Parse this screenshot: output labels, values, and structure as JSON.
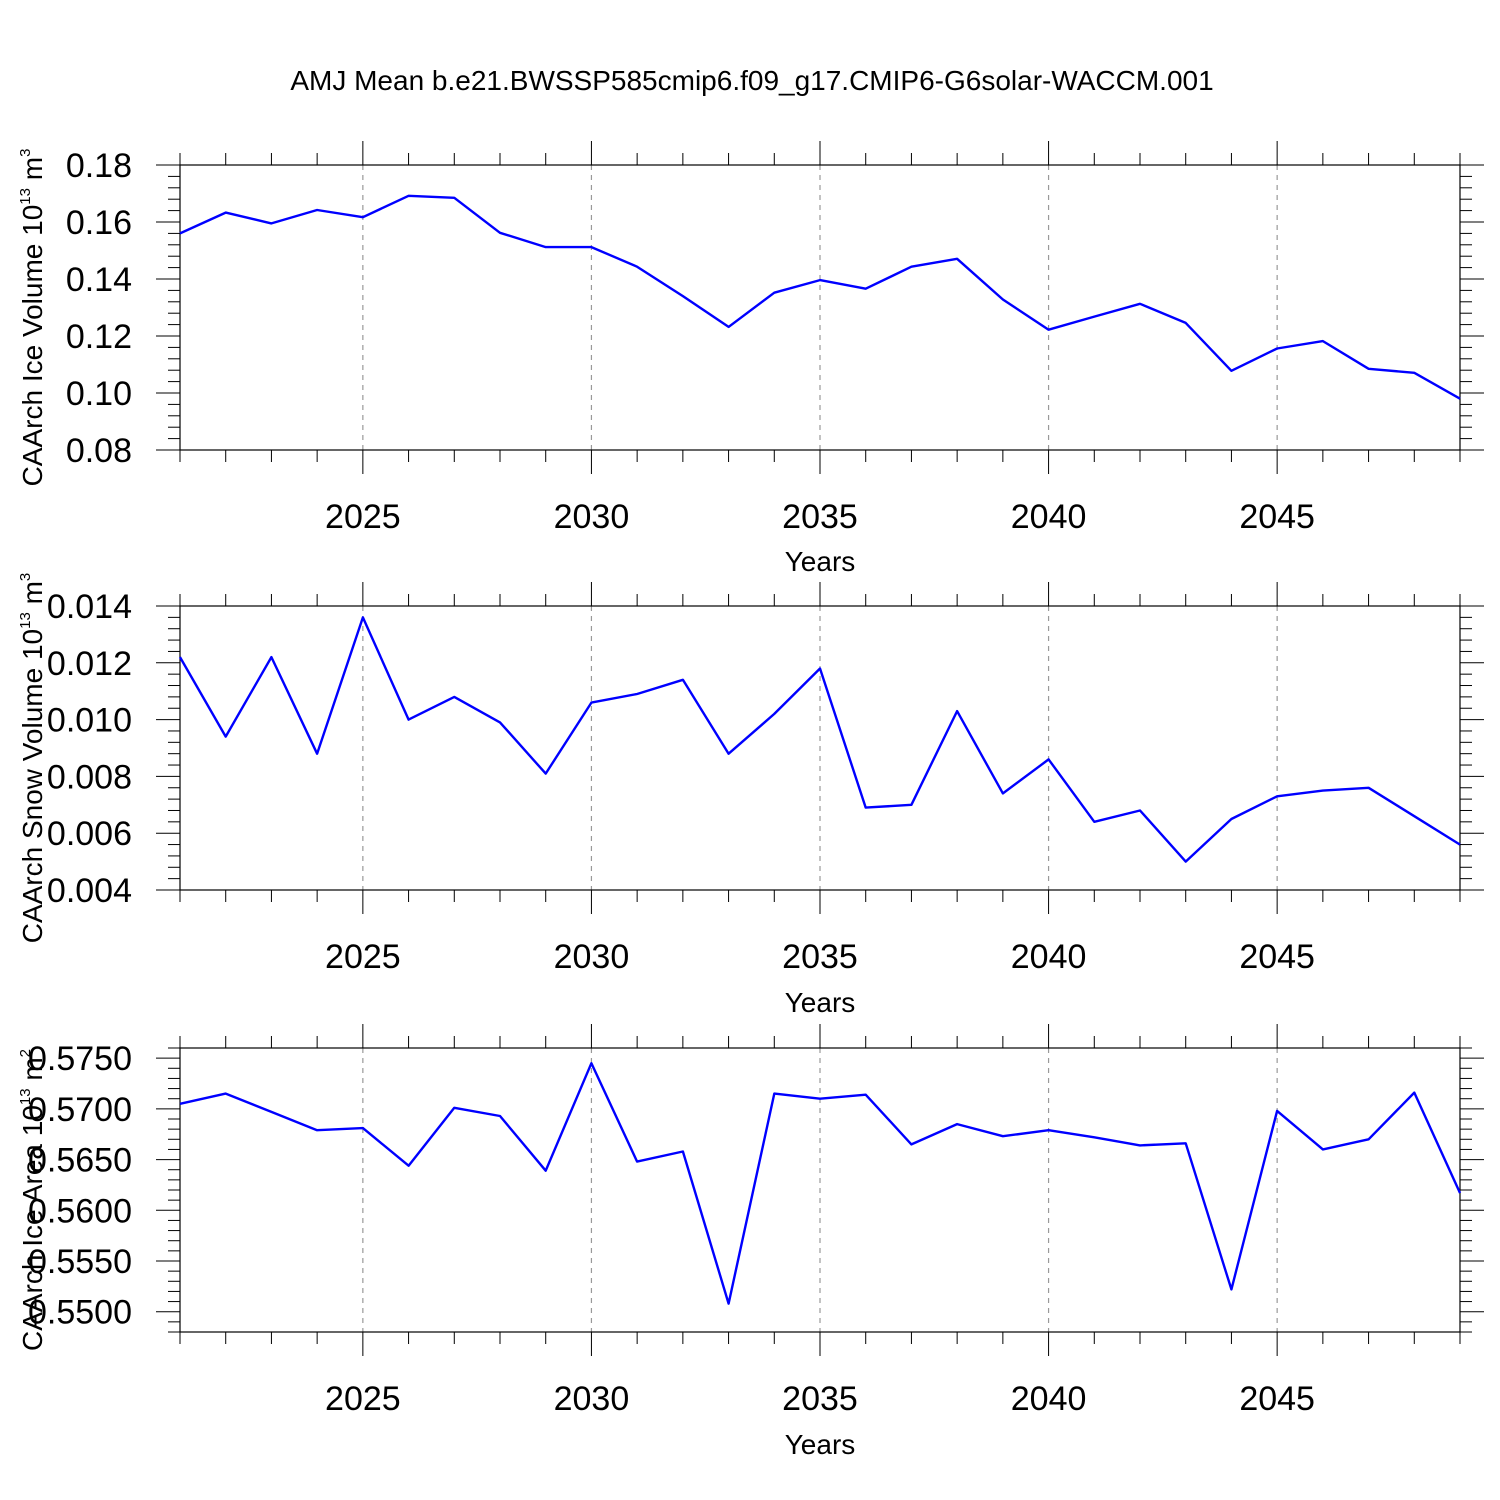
{
  "title": "AMJ Mean b.e21.BWSSP585cmip6.f09_g17.CMIP6-G6solar-WACCM.001",
  "colors": {
    "line": "#0000ff",
    "grid": "#999999",
    "axis": "#000000"
  },
  "chart_data": [
    {
      "type": "line",
      "title": "",
      "xlabel": "Years",
      "ylabel": "CAArch Ice Volume 10",
      "ylabel_exp": "13",
      "ylabel_unit": " m",
      "ylabel_unit_exp": "3",
      "xlim": [
        2021,
        2049
      ],
      "ylim": [
        0.08,
        0.18
      ],
      "xticks": [
        2025,
        2030,
        2035,
        2040,
        2045
      ],
      "xtick_labels": [
        "2025",
        "2030",
        "2035",
        "2040",
        "2045"
      ],
      "yticks": [
        0.08,
        0.1,
        0.12,
        0.14,
        0.16,
        0.18
      ],
      "ytick_labels": [
        "0.08",
        "0.10",
        "0.12",
        "0.14",
        "0.16",
        "0.18"
      ],
      "grid": "vertical dashed at major x ticks",
      "x": [
        2021,
        2022,
        2023,
        2024,
        2025,
        2026,
        2027,
        2028,
        2029,
        2030,
        2031,
        2032,
        2033,
        2034,
        2035,
        2036,
        2037,
        2038,
        2039,
        2040,
        2041,
        2042,
        2043,
        2044,
        2045,
        2046,
        2047,
        2048,
        2049
      ],
      "series": [
        {
          "name": "Ice Volume",
          "values": [
            0.156,
            0.1633,
            0.1595,
            0.1642,
            0.1617,
            0.1692,
            0.1685,
            0.1562,
            0.1512,
            0.1512,
            0.1443,
            0.134,
            0.1232,
            0.1352,
            0.1396,
            0.1366,
            0.1443,
            0.1471,
            0.1328,
            0.1222,
            0.1268,
            0.1313,
            0.1246,
            0.1078,
            0.1156,
            0.1182,
            0.1085,
            0.1071,
            0.098
          ]
        }
      ]
    },
    {
      "type": "line",
      "title": "",
      "xlabel": "Years",
      "ylabel": "CAArch Snow Volume 10",
      "ylabel_exp": "13",
      "ylabel_unit": " m",
      "ylabel_unit_exp": "3",
      "xlim": [
        2021,
        2049
      ],
      "ylim": [
        0.004,
        0.014
      ],
      "xticks": [
        2025,
        2030,
        2035,
        2040,
        2045
      ],
      "xtick_labels": [
        "2025",
        "2030",
        "2035",
        "2040",
        "2045"
      ],
      "yticks": [
        0.004,
        0.006,
        0.008,
        0.01,
        0.012,
        0.014
      ],
      "ytick_labels": [
        "0.004",
        "0.006",
        "0.008",
        "0.010",
        "0.012",
        "0.014"
      ],
      "grid": "vertical dashed at major x ticks",
      "x": [
        2021,
        2022,
        2023,
        2024,
        2025,
        2026,
        2027,
        2028,
        2029,
        2030,
        2031,
        2032,
        2033,
        2034,
        2035,
        2036,
        2037,
        2038,
        2039,
        2040,
        2041,
        2042,
        2043,
        2044,
        2045,
        2046,
        2047,
        2048,
        2049
      ],
      "series": [
        {
          "name": "Snow Volume",
          "values": [
            0.0122,
            0.0094,
            0.0122,
            0.0088,
            0.0136,
            0.01,
            0.0108,
            0.0099,
            0.0081,
            0.0106,
            0.0109,
            0.0114,
            0.0088,
            0.0102,
            0.0118,
            0.0069,
            0.007,
            0.0103,
            0.0074,
            0.0086,
            0.0064,
            0.0068,
            0.005,
            0.0065,
            0.0073,
            0.0075,
            0.0076,
            0.0066,
            0.0056
          ]
        }
      ]
    },
    {
      "type": "line",
      "title": "",
      "xlabel": "Years",
      "ylabel": "CAArch Ice Area 10",
      "ylabel_exp": "13",
      "ylabel_unit": " m",
      "ylabel_unit_exp": "2",
      "xlim": [
        2021,
        2049
      ],
      "ylim": [
        0.548,
        0.576
      ],
      "xticks": [
        2025,
        2030,
        2035,
        2040,
        2045
      ],
      "xtick_labels": [
        "2025",
        "2030",
        "2035",
        "2040",
        "2045"
      ],
      "yticks": [
        0.55,
        0.555,
        0.56,
        0.565,
        0.57,
        0.575
      ],
      "ytick_labels": [
        "0.5500",
        "0.5550",
        "0.5600",
        "0.5650",
        "0.5700",
        "0.5750"
      ],
      "grid": "vertical dashed at major x ticks",
      "x": [
        2021,
        2022,
        2023,
        2024,
        2025,
        2026,
        2027,
        2028,
        2029,
        2030,
        2031,
        2032,
        2033,
        2034,
        2035,
        2036,
        2037,
        2038,
        2039,
        2040,
        2041,
        2042,
        2043,
        2044,
        2045,
        2046,
        2047,
        2048,
        2049
      ],
      "series": [
        {
          "name": "Ice Area",
          "values": [
            0.5705,
            0.5715,
            0.5697,
            0.5679,
            0.5681,
            0.5644,
            0.5701,
            0.5693,
            0.5639,
            0.5745,
            0.5648,
            0.5658,
            0.5508,
            0.5715,
            0.571,
            0.5714,
            0.5665,
            0.5685,
            0.5673,
            0.5679,
            0.5672,
            0.5664,
            0.5666,
            0.5522,
            0.5698,
            0.566,
            0.567,
            0.5716,
            0.5617
          ]
        }
      ]
    }
  ]
}
